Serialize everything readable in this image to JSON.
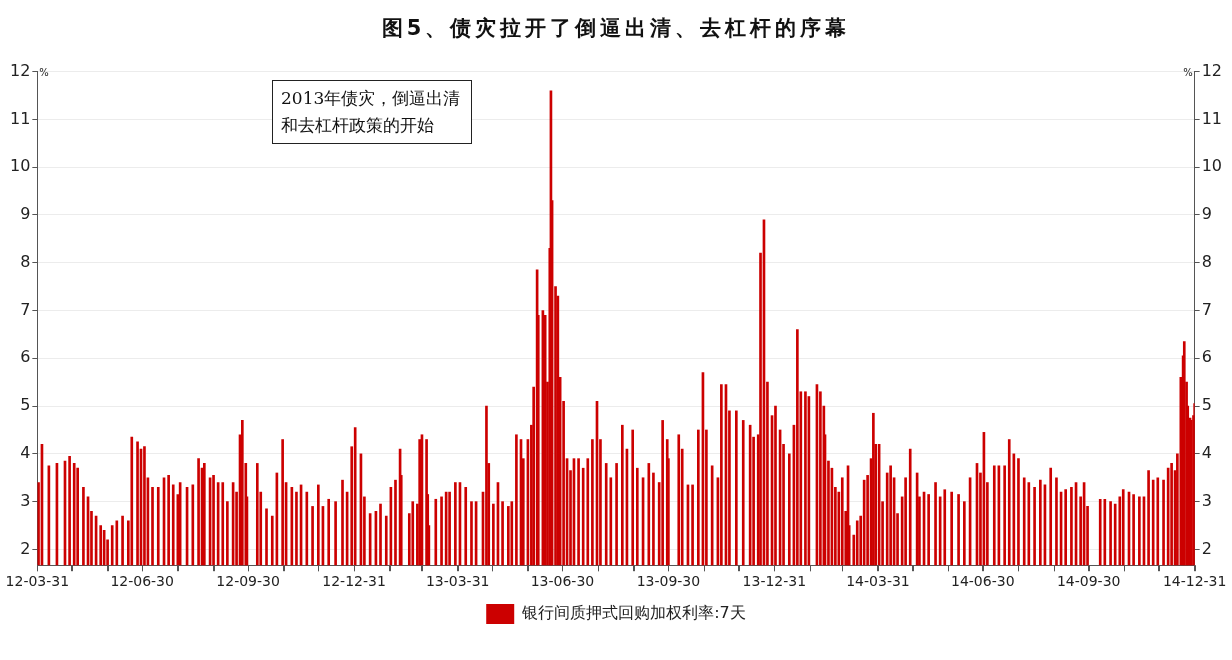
{
  "chart_data": {
    "type": "bar",
    "title": "图5、债灾拉开了倒逼出清、去杠杆的序幕",
    "ylabel": "%",
    "y2label": "%",
    "annotations": [
      "2013年债灾，倒逼出清和去杠杆政策的开始"
    ],
    "xlim": [
      "2012-03-31",
      "2014-12-31"
    ],
    "xticks": [
      {
        "value": "2012-03-31",
        "label": "12-03-31"
      },
      {
        "value": "2012-04-30",
        "label": null
      },
      {
        "value": "2012-05-31",
        "label": null
      },
      {
        "value": "2012-06-30",
        "label": "12-06-30"
      },
      {
        "value": "2012-07-31",
        "label": null
      },
      {
        "value": "2012-08-31",
        "label": null
      },
      {
        "value": "2012-09-30",
        "label": "12-09-30"
      },
      {
        "value": "2012-10-31",
        "label": null
      },
      {
        "value": "2012-11-30",
        "label": null
      },
      {
        "value": "2012-12-31",
        "label": "12-12-31"
      },
      {
        "value": "2013-01-31",
        "label": null
      },
      {
        "value": "2013-02-28",
        "label": null
      },
      {
        "value": "2013-03-31",
        "label": "13-03-31"
      },
      {
        "value": "2013-04-30",
        "label": null
      },
      {
        "value": "2013-05-31",
        "label": null
      },
      {
        "value": "2013-06-30",
        "label": "13-06-30"
      },
      {
        "value": "2013-07-31",
        "label": null
      },
      {
        "value": "2013-08-31",
        "label": null
      },
      {
        "value": "2013-09-30",
        "label": "13-09-30"
      },
      {
        "value": "2013-10-31",
        "label": null
      },
      {
        "value": "2013-11-30",
        "label": null
      },
      {
        "value": "2013-12-31",
        "label": "13-12-31"
      },
      {
        "value": "2014-01-31",
        "label": null
      },
      {
        "value": "2014-02-28",
        "label": null
      },
      {
        "value": "2014-03-31",
        "label": "14-03-31"
      },
      {
        "value": "2014-04-30",
        "label": null
      },
      {
        "value": "2014-05-31",
        "label": null
      },
      {
        "value": "2014-06-30",
        "label": "14-06-30"
      },
      {
        "value": "2014-07-31",
        "label": null
      },
      {
        "value": "2014-08-31",
        "label": null
      },
      {
        "value": "2014-09-30",
        "label": "14-09-30"
      },
      {
        "value": "2014-10-31",
        "label": null
      },
      {
        "value": "2014-11-30",
        "label": null
      },
      {
        "value": "2014-12-31",
        "label": "14-12-31"
      }
    ],
    "ylim": [
      1.67,
      12
    ],
    "yticks": [
      2,
      3,
      4,
      5,
      6,
      7,
      8,
      9,
      10,
      11,
      12
    ],
    "y2lim": [
      1.67,
      12
    ],
    "y2ticks": [
      2,
      3,
      4,
      5,
      6,
      7,
      8,
      9,
      10,
      11,
      12
    ],
    "grid": "y",
    "legend": "bottom",
    "series": [
      {
        "name": "银行间质押式回购加权利率:7天",
        "color": "#cc0000",
        "x": [
          "2012-04-01",
          "2012-04-04",
          "2012-04-10",
          "2012-04-17",
          "2012-04-24",
          "2012-04-28",
          "2012-05-02",
          "2012-05-05",
          "2012-05-10",
          "2012-05-14",
          "2012-05-17",
          "2012-05-21",
          "2012-05-25",
          "2012-05-28",
          "2012-05-31",
          "2012-06-04",
          "2012-06-08",
          "2012-06-13",
          "2012-06-18",
          "2012-06-21",
          "2012-06-26",
          "2012-06-29",
          "2012-07-02",
          "2012-07-05",
          "2012-07-09",
          "2012-07-14",
          "2012-07-19",
          "2012-07-23",
          "2012-07-27",
          "2012-07-31",
          "2012-08-02",
          "2012-08-08",
          "2012-08-13",
          "2012-08-18",
          "2012-08-21",
          "2012-08-23",
          "2012-08-28",
          "2012-08-31",
          "2012-09-04",
          "2012-09-08",
          "2012-09-12",
          "2012-09-17",
          "2012-09-20",
          "2012-09-23",
          "2012-09-25",
          "2012-09-28",
          "2012-09-29",
          "2012-10-08",
          "2012-10-11",
          "2012-10-16",
          "2012-10-21",
          "2012-10-25",
          "2012-10-30",
          "2012-11-02",
          "2012-11-07",
          "2012-11-11",
          "2012-11-15",
          "2012-11-20",
          "2012-11-25",
          "2012-11-30",
          "2012-12-04",
          "2012-12-09",
          "2012-12-15",
          "2012-12-21",
          "2012-12-25",
          "2012-12-29",
          "2013-01-01",
          "2013-01-06",
          "2013-01-09",
          "2013-01-14",
          "2013-01-19",
          "2013-01-23",
          "2013-01-28",
          "2013-02-01",
          "2013-02-05",
          "2013-02-09",
          "2013-02-10",
          "2013-02-17",
          "2013-02-20",
          "2013-02-24",
          "2013-02-26",
          "2013-02-28",
          "2013-03-04",
          "2013-03-05",
          "2013-03-06",
          "2013-03-12",
          "2013-03-17",
          "2013-03-21",
          "2013-03-24",
          "2013-03-29",
          "2013-04-02",
          "2013-04-07",
          "2013-04-12",
          "2013-04-16",
          "2013-04-22",
          "2013-04-25",
          "2013-04-27",
          "2013-05-01",
          "2013-05-05",
          "2013-05-09",
          "2013-05-14",
          "2013-05-17",
          "2013-05-21",
          "2013-05-25",
          "2013-05-27",
          "2013-05-31",
          "2013-06-03",
          "2013-06-05",
          "2013-06-08",
          "2013-06-09",
          "2013-06-13",
          "2013-06-15",
          "2013-06-17",
          "2013-06-19",
          "2013-06-20",
          "2013-06-21",
          "2013-06-24",
          "2013-06-26",
          "2013-06-28",
          "2013-07-01",
          "2013-07-04",
          "2013-07-07",
          "2013-07-10",
          "2013-07-14",
          "2013-07-18",
          "2013-07-22",
          "2013-07-26",
          "2013-07-30",
          "2013-08-02",
          "2013-08-07",
          "2013-08-11",
          "2013-08-16",
          "2013-08-21",
          "2013-08-25",
          "2013-08-30",
          "2013-09-03",
          "2013-09-08",
          "2013-09-13",
          "2013-09-17",
          "2013-09-22",
          "2013-09-25",
          "2013-09-29",
          "2013-09-30",
          "2013-10-09",
          "2013-10-12",
          "2013-10-17",
          "2013-10-21",
          "2013-10-26",
          "2013-10-30",
          "2013-11-02",
          "2013-11-07",
          "2013-11-12",
          "2013-11-15",
          "2013-11-19",
          "2013-11-22",
          "2013-11-28",
          "2013-12-04",
          "2013-12-10",
          "2013-12-13",
          "2013-12-17",
          "2013-12-19",
          "2013-12-22",
          "2013-12-25",
          "2013-12-29",
          "2014-01-01",
          "2014-01-05",
          "2014-01-08",
          "2014-01-13",
          "2014-01-17",
          "2014-01-20",
          "2014-01-23",
          "2014-01-27",
          "2014-01-30",
          "2014-02-06",
          "2014-02-09",
          "2014-02-12",
          "2014-02-13",
          "2014-02-16",
          "2014-02-19",
          "2014-02-22",
          "2014-02-25",
          "2014-02-28",
          "2014-03-03",
          "2014-03-05",
          "2014-03-06",
          "2014-03-10",
          "2014-03-13",
          "2014-03-16",
          "2014-03-19",
          "2014-03-22",
          "2014-03-25",
          "2014-03-27",
          "2014-03-29",
          "2014-04-01",
          "2014-04-04",
          "2014-04-08",
          "2014-04-11",
          "2014-04-14",
          "2014-04-17",
          "2014-04-21",
          "2014-04-24",
          "2014-04-28",
          "2014-05-04",
          "2014-05-06",
          "2014-05-10",
          "2014-05-14",
          "2014-05-20",
          "2014-05-24",
          "2014-05-28",
          "2014-06-03",
          "2014-06-09",
          "2014-06-14",
          "2014-06-19",
          "2014-06-25",
          "2014-06-28",
          "2014-07-01",
          "2014-07-04",
          "2014-07-10",
          "2014-07-14",
          "2014-07-19",
          "2014-07-23",
          "2014-07-27",
          "2014-07-31",
          "2014-08-05",
          "2014-08-09",
          "2014-08-14",
          "2014-08-19",
          "2014-08-23",
          "2014-08-28",
          "2014-09-02",
          "2014-09-06",
          "2014-09-10",
          "2014-09-15",
          "2014-09-19",
          "2014-09-23",
          "2014-09-26",
          "2014-09-29",
          "2014-10-10",
          "2014-10-14",
          "2014-10-19",
          "2014-10-23",
          "2014-10-27",
          "2014-10-30",
          "2014-11-04",
          "2014-11-08",
          "2014-11-13",
          "2014-11-17",
          "2014-11-21",
          "2014-11-25",
          "2014-11-29",
          "2014-12-04",
          "2014-12-08",
          "2014-12-11",
          "2014-12-14",
          "2014-12-16",
          "2014-12-19",
          "2014-12-21",
          "2014-12-22",
          "2014-12-24",
          "2014-12-25",
          "2014-12-27",
          "2014-12-28",
          "2014-12-30",
          "2014-12-31"
        ],
        "values": [
          3.4,
          4.2,
          3.75,
          3.8,
          3.85,
          3.95,
          3.8,
          3.7,
          3.3,
          3.1,
          2.8,
          2.7,
          2.5,
          2.4,
          2.2,
          2.5,
          2.6,
          2.7,
          2.6,
          4.35,
          4.25,
          4.1,
          4.15,
          3.5,
          3.3,
          3.3,
          3.5,
          3.55,
          3.35,
          3.15,
          3.4,
          3.3,
          3.35,
          3.9,
          3.7,
          3.8,
          3.5,
          3.55,
          3.4,
          3.4,
          3.0,
          3.4,
          3.2,
          4.4,
          4.7,
          3.8,
          3.1,
          3.8,
          3.2,
          2.85,
          2.7,
          3.6,
          4.3,
          3.4,
          3.3,
          3.2,
          3.35,
          3.2,
          2.9,
          3.35,
          2.9,
          3.05,
          3.0,
          3.45,
          3.2,
          4.15,
          4.55,
          4.0,
          3.1,
          2.75,
          2.8,
          2.95,
          2.7,
          3.3,
          3.45,
          4.1,
          3.55,
          2.75,
          3.0,
          2.95,
          4.3,
          4.4,
          4.3,
          3.15,
          2.5,
          3.05,
          3.1,
          3.2,
          3.2,
          3.4,
          3.4,
          3.3,
          3.0,
          3.0,
          3.2,
          5.0,
          3.8,
          2.95,
          3.4,
          3.0,
          2.9,
          3.0,
          4.4,
          4.3,
          3.9,
          4.3,
          4.6,
          5.4,
          7.85,
          6.9,
          7.0,
          6.9,
          5.5,
          8.3,
          11.6,
          9.3,
          7.5,
          7.3,
          5.6,
          5.1,
          3.9,
          3.65,
          3.9,
          3.9,
          3.7,
          3.9,
          4.3,
          5.1,
          4.3,
          3.8,
          3.5,
          3.8,
          4.6,
          4.1,
          4.5,
          3.7,
          3.5,
          3.8,
          3.6,
          3.4,
          4.7,
          4.3,
          3.9,
          4.4,
          4.1,
          3.35,
          3.35,
          4.5,
          5.7,
          4.5,
          3.75,
          3.5,
          5.45,
          5.45,
          4.9,
          4.9,
          4.7,
          4.6,
          4.35,
          4.4,
          8.2,
          8.9,
          5.5,
          4.8,
          5.0,
          4.5,
          4.2,
          4.0,
          4.6,
          6.6,
          5.3,
          5.3,
          5.2,
          5.45,
          5.3,
          5.0,
          4.4,
          3.85,
          3.7,
          3.3,
          3.2,
          3.5,
          2.8,
          3.75,
          2.5,
          2.3,
          2.6,
          2.7,
          3.45,
          3.55,
          3.9,
          4.85,
          4.2,
          4.2,
          3.0,
          3.6,
          3.75,
          3.5,
          2.75,
          3.1,
          3.5,
          4.1,
          3.6,
          3.1,
          3.2,
          3.15,
          3.4,
          3.1,
          3.25,
          3.2,
          3.15,
          3.0,
          3.5,
          3.8,
          3.6,
          4.45,
          3.4,
          3.75,
          3.75,
          3.75,
          4.3,
          4.0,
          3.9,
          3.5,
          3.4,
          3.3,
          3.45,
          3.35,
          3.7,
          3.5,
          3.2,
          3.25,
          3.3,
          3.4,
          3.1,
          3.4,
          2.9,
          3.05,
          3.05,
          3.0,
          2.95,
          3.1,
          3.25,
          3.2,
          3.15,
          3.1,
          3.1,
          3.65,
          3.45,
          3.5,
          3.45,
          3.7,
          3.8,
          3.65,
          4.0,
          5.6,
          6.05,
          6.35,
          5.5,
          5.0,
          4.75,
          4.7,
          4.8,
          5.05
        ]
      }
    ]
  }
}
